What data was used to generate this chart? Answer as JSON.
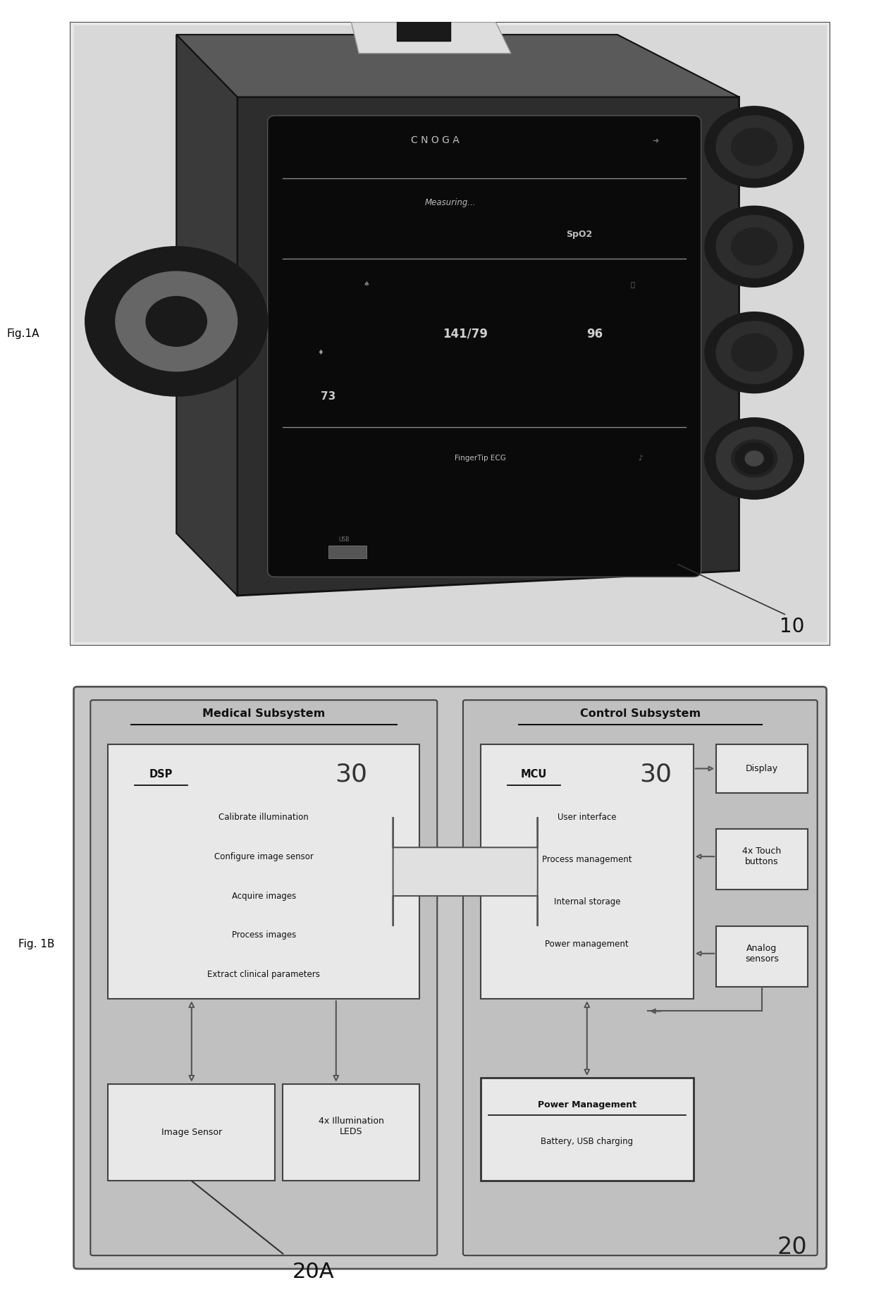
{
  "fig1a_label": "Fig.1A",
  "fig1b_label": "Fig. 1B",
  "device_label": "10",
  "subsystem_label": "20",
  "subsystem_a_label": "20A",
  "medical_subsystem_title": "Medical Subsystem",
  "control_subsystem_title": "Control Subsystem",
  "dsp_label": "DSP",
  "dsp_number": "30",
  "dsp_lines": [
    "Calibrate illumination",
    "Configure image sensor",
    "Acquire images",
    "Process images",
    "Extract clinical parameters"
  ],
  "mcu_label": "MCU",
  "mcu_number": "30",
  "mcu_lines": [
    "User interface",
    "Process management",
    "Internal storage",
    "Power management"
  ],
  "display_label": "Display",
  "touch_label": "4x Touch\nbuttons",
  "analog_label": "Analog\nsensors",
  "image_sensor_label": "Image Sensor",
  "leds_label": "4x Illumination\nLEDS",
  "power_mgmt_label": "Power Management",
  "power_mgmt_sub": "Battery, USB charging",
  "measuring_text": "Measuring...",
  "spo2_text": "SpO2",
  "bp_text": "141/79",
  "spo2_val": "96",
  "hr_text": "73",
  "cnoga_text": "C N O G A",
  "fingertip_text": "FingerTip ECG",
  "usb_text": "USB"
}
